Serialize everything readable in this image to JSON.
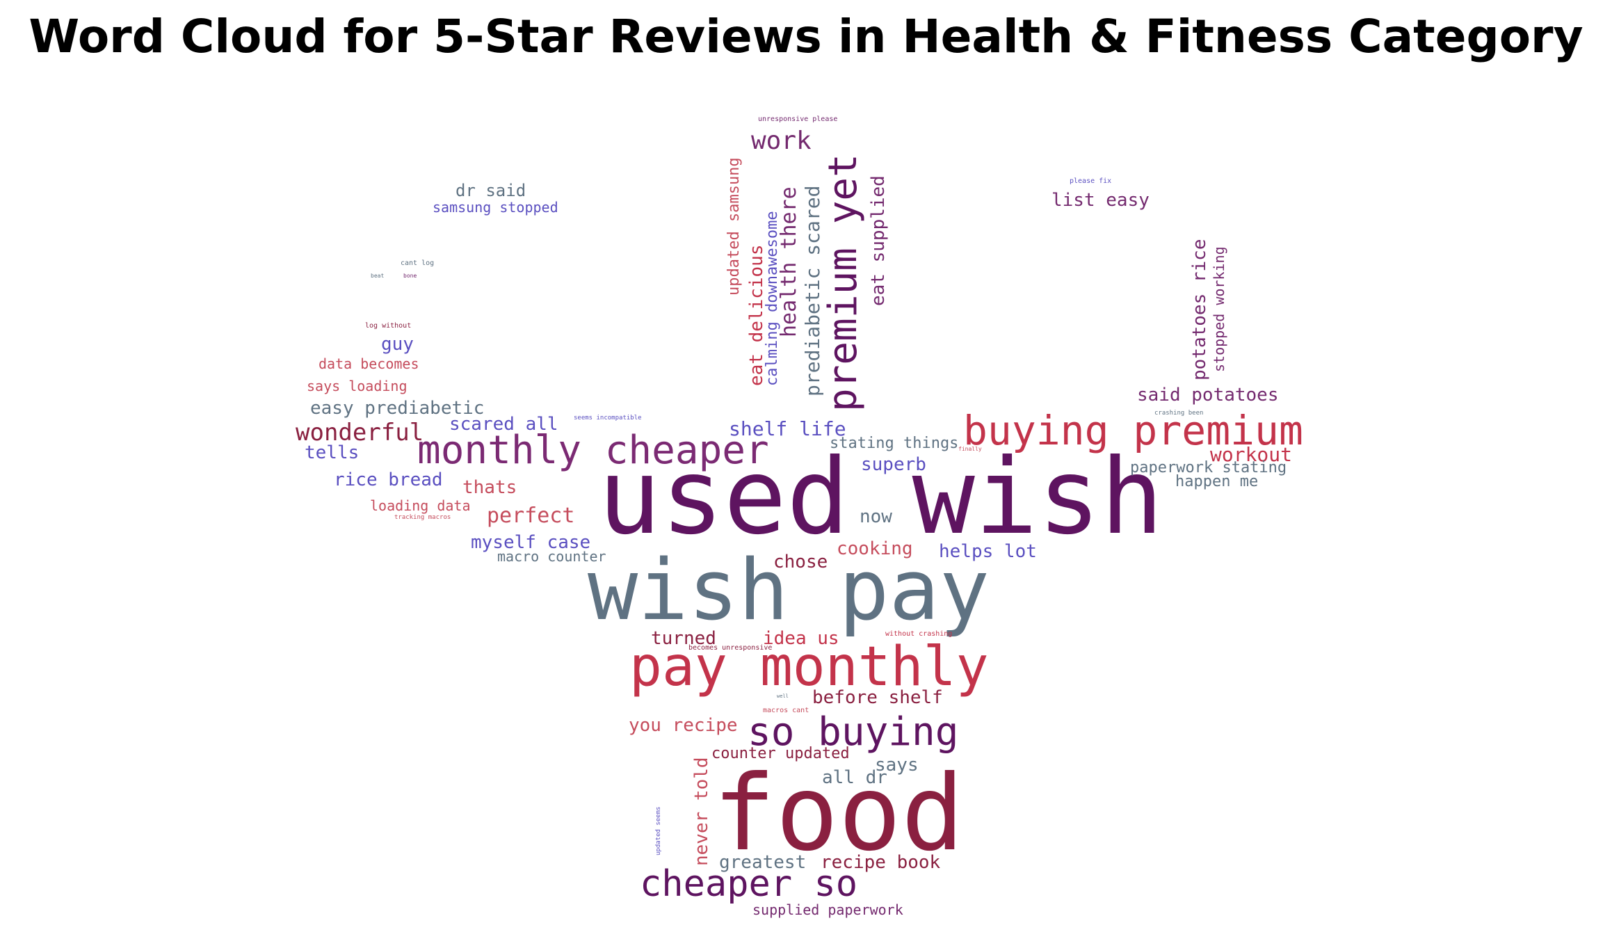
{
  "chart_data": {
    "type": "wordcloud",
    "title": "Word Cloud for 5-Star Reviews in Health & Fitness Category",
    "colors": {
      "dark_purple": "#5e1460",
      "slate": "#5f7282",
      "crimson": "#c3334a",
      "maroon": "#8a2040",
      "indigo": "#5a4fc0",
      "violet": "#7b2a73",
      "rose": "#c54c5c",
      "plum": "#742a6f"
    },
    "words": [
      {
        "text": "used wish",
        "weight": 100,
        "color": "#5e1460"
      },
      {
        "text": "wish pay",
        "weight": 90,
        "color": "#5f7282"
      },
      {
        "text": "food",
        "weight": 100,
        "color": "#8a2040"
      },
      {
        "text": "pay monthly",
        "weight": 62,
        "color": "#c3334a"
      },
      {
        "text": "monthly cheaper",
        "weight": 46,
        "color": "#7b2a73"
      },
      {
        "text": "buying premium",
        "weight": 46,
        "color": "#c3334a"
      },
      {
        "text": "premium yet",
        "weight": 46,
        "color": "#5e1460"
      },
      {
        "text": "so buying",
        "weight": 44,
        "color": "#5e1460"
      },
      {
        "text": "cheaper so",
        "weight": 44,
        "color": "#5e1460"
      },
      {
        "text": "work",
        "weight": 28,
        "color": "#742a6f"
      },
      {
        "text": "health there",
        "weight": 24,
        "color": "#742a6f"
      },
      {
        "text": "prediabetic scared",
        "weight": 22,
        "color": "#5f7282"
      },
      {
        "text": "eat supplied",
        "weight": 20,
        "color": "#742a6f"
      },
      {
        "text": "eat delicious",
        "weight": 20,
        "color": "#c3334a"
      },
      {
        "text": "calming downawesome",
        "weight": 18,
        "color": "#5a4fc0"
      },
      {
        "text": "updated samsung",
        "weight": 18,
        "color": "#c54c5c"
      },
      {
        "text": "wonderful",
        "weight": 26,
        "color": "#8a2040"
      },
      {
        "text": "workout",
        "weight": 22,
        "color": "#c3334a"
      },
      {
        "text": "perfect",
        "weight": 22,
        "color": "#c54c5c"
      },
      {
        "text": "shelf life",
        "weight": 22,
        "color": "#5a4fc0"
      },
      {
        "text": "said potatoes",
        "weight": 20,
        "color": "#742a6f"
      },
      {
        "text": "list easy",
        "weight": 20,
        "color": "#742a6f"
      },
      {
        "text": "dr said",
        "weight": 18,
        "color": "#5f7282"
      },
      {
        "text": "samsung stopped",
        "weight": 16,
        "color": "#5a4fc0"
      },
      {
        "text": "potatoes rice",
        "weight": 20,
        "color": "#742a6f"
      },
      {
        "text": "stopped working",
        "weight": 16,
        "color": "#742a6f"
      },
      {
        "text": "guy",
        "weight": 20,
        "color": "#5a4fc0"
      },
      {
        "text": "data becomes",
        "weight": 16,
        "color": "#c54c5c"
      },
      {
        "text": "says loading",
        "weight": 16,
        "color": "#c54c5c"
      },
      {
        "text": "easy prediabetic",
        "weight": 20,
        "color": "#5f7282"
      },
      {
        "text": "scared all",
        "weight": 20,
        "color": "#5a4fc0"
      },
      {
        "text": "tells",
        "weight": 20,
        "color": "#5a4fc0"
      },
      {
        "text": "rice bread",
        "weight": 20,
        "color": "#5a4fc0"
      },
      {
        "text": "thats",
        "weight": 20,
        "color": "#c54c5c"
      },
      {
        "text": "loading data",
        "weight": 16,
        "color": "#c54c5c"
      },
      {
        "text": "myself case",
        "weight": 20,
        "color": "#5a4fc0"
      },
      {
        "text": "macro counter",
        "weight": 16,
        "color": "#5f7282"
      },
      {
        "text": "stating things",
        "weight": 18,
        "color": "#5f7282"
      },
      {
        "text": "superb",
        "weight": 20,
        "color": "#5a4fc0"
      },
      {
        "text": "paperwork stating",
        "weight": 18,
        "color": "#5f7282"
      },
      {
        "text": "happen me",
        "weight": 18,
        "color": "#5f7282"
      },
      {
        "text": "now",
        "weight": 20,
        "color": "#5f7282"
      },
      {
        "text": "cooking",
        "weight": 20,
        "color": "#c54c5c"
      },
      {
        "text": "helps lot",
        "weight": 20,
        "color": "#5a4fc0"
      },
      {
        "text": "chose",
        "weight": 20,
        "color": "#8a2040"
      },
      {
        "text": "turned",
        "weight": 20,
        "color": "#8a2040"
      },
      {
        "text": "idea us",
        "weight": 20,
        "color": "#c3334a"
      },
      {
        "text": "before shelf",
        "weight": 20,
        "color": "#8a2040"
      },
      {
        "text": "you recipe",
        "weight": 20,
        "color": "#c54c5c"
      },
      {
        "text": "counter updated",
        "weight": 18,
        "color": "#8a2040"
      },
      {
        "text": "says",
        "weight": 20,
        "color": "#5f7282"
      },
      {
        "text": "all dr",
        "weight": 20,
        "color": "#5f7282"
      },
      {
        "text": "never told",
        "weight": 20,
        "color": "#c54c5c"
      },
      {
        "text": "greatest",
        "weight": 20,
        "color": "#5f7282"
      },
      {
        "text": "recipe book",
        "weight": 20,
        "color": "#8a2040"
      },
      {
        "text": "supplied paperwork",
        "weight": 16,
        "color": "#742a6f"
      },
      {
        "text": "unresponsive please",
        "weight": 6,
        "color": "#742a6f"
      },
      {
        "text": "please fix",
        "weight": 6,
        "color": "#5a4fc0"
      },
      {
        "text": "cant log",
        "weight": 6,
        "color": "#5f7282"
      },
      {
        "text": "beat",
        "weight": 4,
        "color": "#5f7282"
      },
      {
        "text": "bone",
        "weight": 4,
        "color": "#742a6f"
      },
      {
        "text": "log without",
        "weight": 6,
        "color": "#8a2040"
      },
      {
        "text": "seems incompatible",
        "weight": 5,
        "color": "#5a4fc0"
      },
      {
        "text": "crashing been",
        "weight": 5,
        "color": "#5f7282"
      },
      {
        "text": "finally",
        "weight": 4,
        "color": "#c54c5c"
      },
      {
        "text": "tracking macros",
        "weight": 5,
        "color": "#c54c5c"
      },
      {
        "text": "without crashing",
        "weight": 6,
        "color": "#c3334a"
      },
      {
        "text": "becomes unresponsive",
        "weight": 6,
        "color": "#8a2040"
      },
      {
        "text": "well",
        "weight": 4,
        "color": "#5f7282"
      },
      {
        "text": "macros cant",
        "weight": 6,
        "color": "#c54c5c"
      },
      {
        "text": "updated seems",
        "weight": 5,
        "color": "#5a4fc0"
      }
    ]
  }
}
